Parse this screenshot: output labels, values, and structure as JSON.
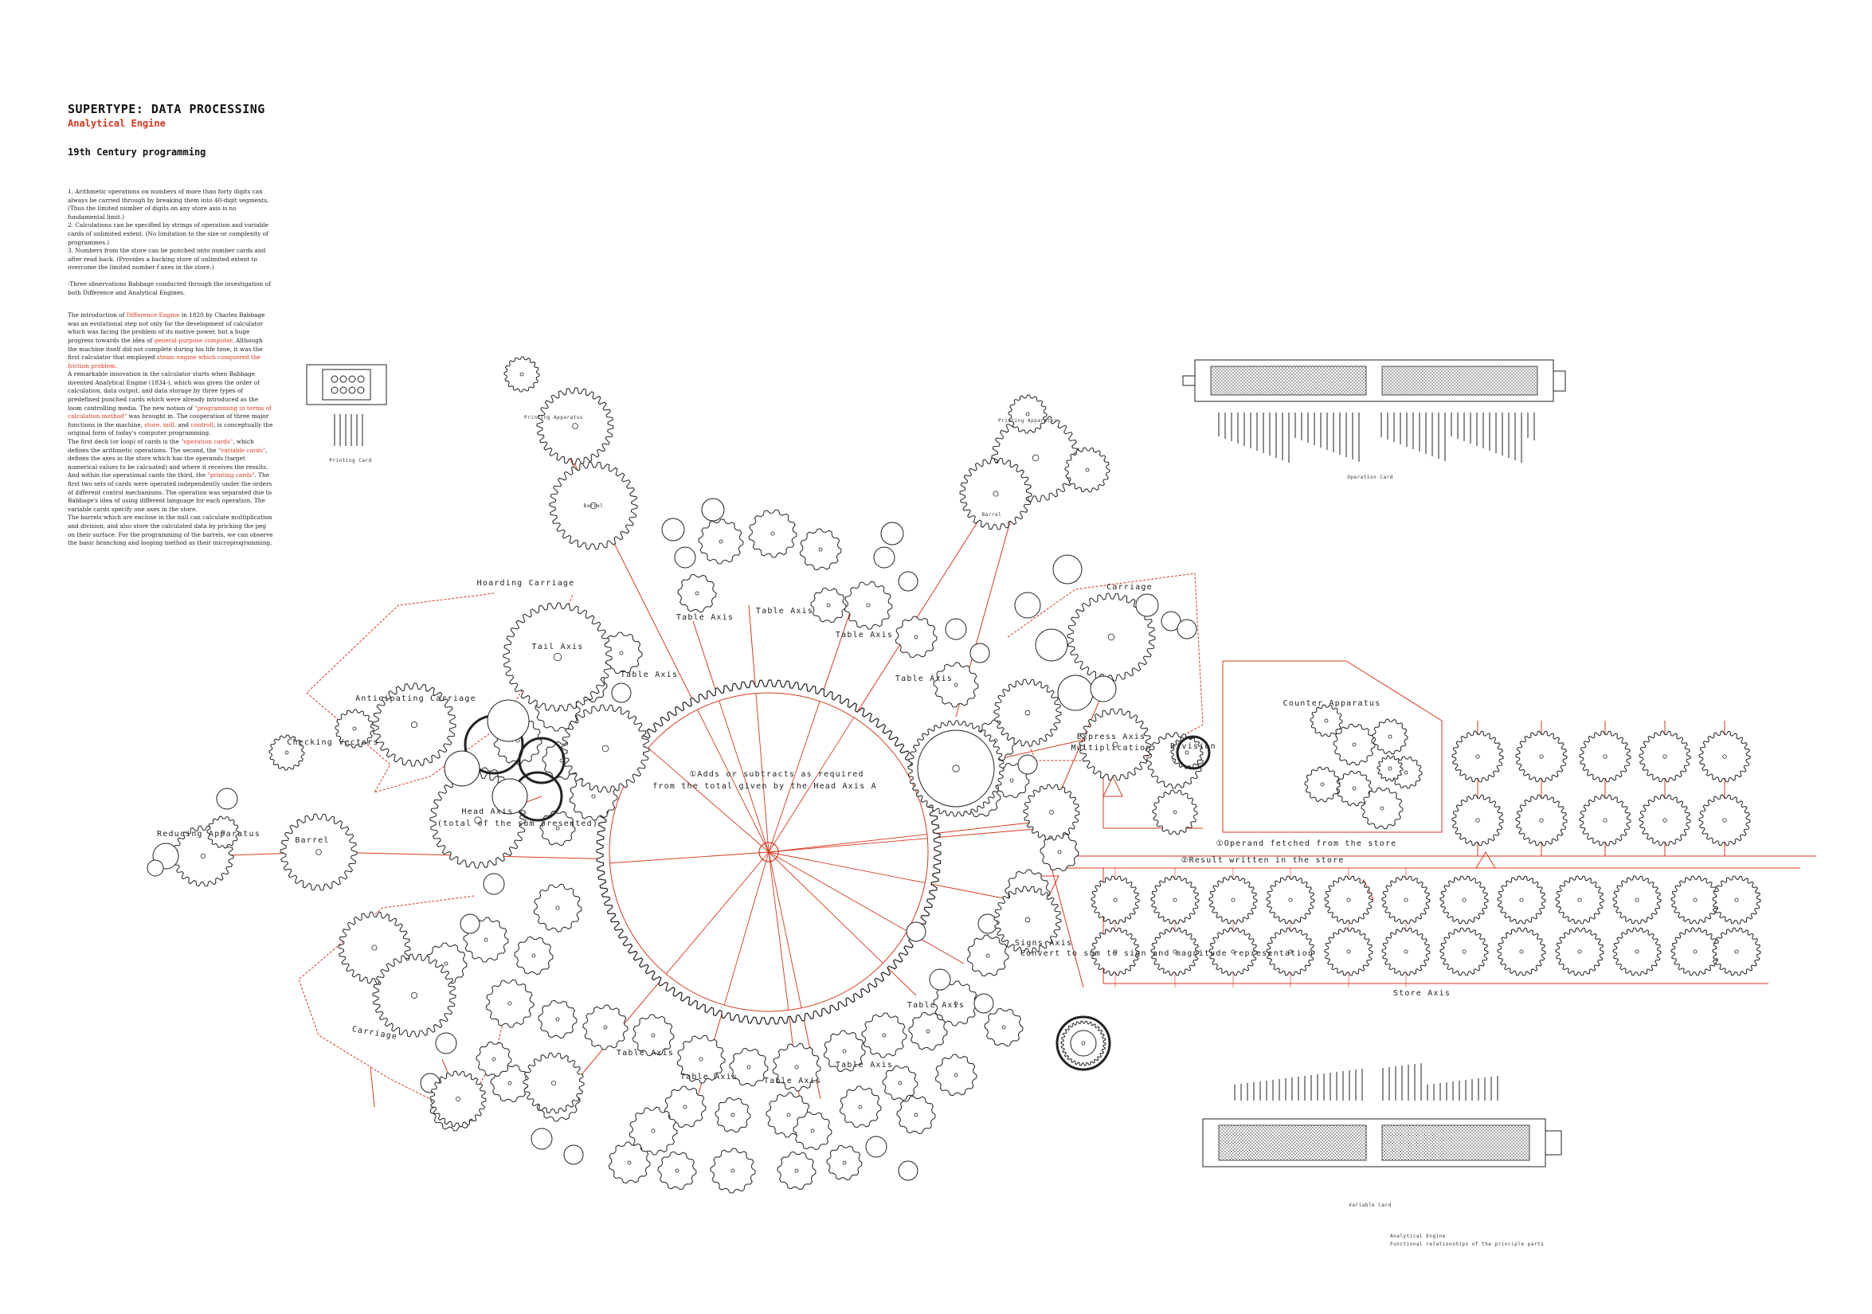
{
  "header": {
    "title": "SUPERTYPE: DATA PROCESSING",
    "subtitle": "Analytical Engine",
    "heading": "19th Century programming"
  },
  "text": {
    "observations": [
      "1. Arithmetic operations on numbers of more than forty digits can always be carried through by breaking them into 40-digit segments. (Thus the limited number of digits on any store axis is no fundamental limit.)",
      "2. Calculations can be specified by strings of operation and variable cards of unlimited extent. (No limitation to the size or complexity of programmes.)",
      "3. Numbers from the store can be punched onto number cards and after read back. (Provides a backing store of unlimited extent to overcome the limited number f axes in the store.)"
    ],
    "obs_caption": "-Three observations Babbage conducted through the investigation of both Difference and Analytical Engines.",
    "intro": {
      "p1_a": "The introduction of ",
      "p1_red1": "Difference Engine",
      "p1_b": " in 1820 by Charles Babbage was an evolutional step not only for the development of calculator which was facing the problem of its motive power, but a huge progress towards the idea of ",
      "p1_red2": "general-purpose computer",
      "p1_c": ". Although the machine itself did not complete during his life time, it was the first calculator that employed ",
      "p1_red3": "steam engine which conquered the friction problem.",
      "p2": "A remarkable innovation in the calculator starts when Babbage invented Analytical Engine (1834-), which was given the order of calculation, data output, and data storage by three types of predefined punched cards which were already introduced as the loom controlling media. The new notion of ",
      "p2_red": "\"programming in terms of calculation method\"",
      "p2_b": " was brought in. The cooperation of three major functions in the machine, ",
      "p2_red2": "store, mill,",
      "p2_c": " and ",
      "p2_red3": "controll",
      "p2_d": ", is conceptually the original form of today's computer programming.",
      "p3_a": "The first deck (or loop) of cards is the ",
      "p3_red1": "\"operation cards\"",
      "p3_b": ", which defines the arithmetic operations. The second, the ",
      "p3_red2": "\"variable cards\"",
      "p3_c": ", defines the axes in the store which has the operands (target numerical values to be calcuated) and where it receives the results. And within the operational cards the third, the ",
      "p3_red3": "\"printing cards\"",
      "p3_d": ". The first two sets of cards were operated independently under the orders of different control mechanisms. The operation was separated due to Babbage's idea of using different language for each operation. The variable cards specify one axes in the store.",
      "p4": "The barrels which are enclose in the mill can calculate multiplication and division, and also store the calculated data by pricking the peg on their surface. For the programming of the barrels, we can observe the basic branching and looping method as their microprogramming."
    }
  },
  "diagram": {
    "labels": {
      "printing_card": "Printing Card",
      "operation_card": "Operation Card",
      "variable_card": "Variable Card",
      "hoarding_carriage": "Hoarding Carriage",
      "tail_axis": "Tail Axis",
      "anticipating_carriage": "Anticipating Carriage",
      "checking_vectors": "Checking Vectors",
      "reducing_apparatus": "Reducing Apparatus",
      "barrel": "Barrel",
      "head_axis": "Head Axis",
      "head_axis_sub": "(total of the sum presented)",
      "carriage_left": "Carriage",
      "carriage_right": "Carriage",
      "add_subtract_1": "①Adds or subtracts as required",
      "add_subtract_2": "from the total given by the Head Axis A",
      "table_axis": "Table Axis",
      "express_axis": "Express Axis",
      "multiplication": "Multiplication",
      "division": "Division",
      "counter_apparatus": "Counter Apparatus",
      "operand_fetched": "①Operand fetched from the store",
      "result_written": "②Result written in the store",
      "signs_axis": "Signs Axis",
      "convert": "Convert to sum to sign and magnitude representation",
      "store_axis": "Store Axis",
      "caption_1": "Analytical Engine",
      "caption_2": "Functional relationships of the principle parts",
      "barrel_small": "Barrel",
      "printing_apparatus": "Printing Apparatus",
      "reducing_small": "Reducing Apparatus"
    },
    "colors": {
      "line": "#222222",
      "accent": "#d9381e"
    }
  }
}
